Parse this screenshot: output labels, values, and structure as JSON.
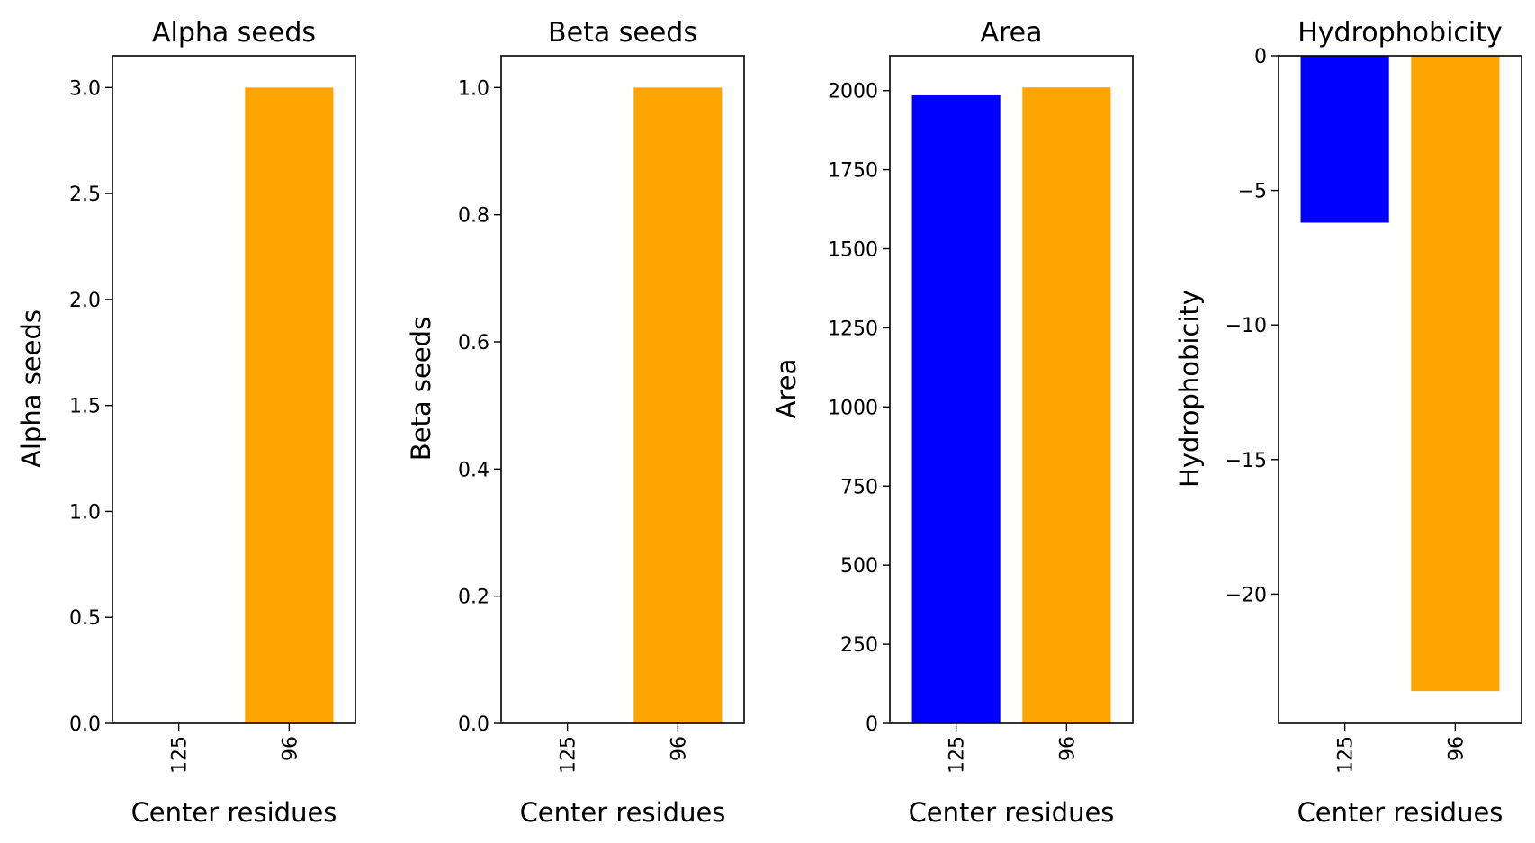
{
  "chart_data": [
    {
      "type": "bar",
      "title": "Alpha seeds",
      "xlabel": "Center residues",
      "ylabel": "Alpha seeds",
      "categories": [
        "125",
        "96"
      ],
      "values": [
        0,
        3.0
      ],
      "colors": [
        "#0000ff",
        "#ffa500"
      ],
      "ylim": [
        0,
        3.15
      ],
      "yticks": [
        0.0,
        0.5,
        1.0,
        1.5,
        2.0,
        2.5,
        3.0
      ],
      "ytick_labels": [
        "0.0",
        "0.5",
        "1.0",
        "1.5",
        "2.0",
        "2.5",
        "3.0"
      ],
      "grid": false
    },
    {
      "type": "bar",
      "title": "Beta seeds",
      "xlabel": "Center residues",
      "ylabel": "Beta seeds",
      "categories": [
        "125",
        "96"
      ],
      "values": [
        0,
        1.0
      ],
      "colors": [
        "#0000ff",
        "#ffa500"
      ],
      "ylim": [
        0,
        1.05
      ],
      "yticks": [
        0.0,
        0.2,
        0.4,
        0.6,
        0.8,
        1.0
      ],
      "ytick_labels": [
        "0.0",
        "0.2",
        "0.4",
        "0.6",
        "0.8",
        "1.0"
      ],
      "grid": false
    },
    {
      "type": "bar",
      "title": "Area",
      "xlabel": "Center residues",
      "ylabel": "Area",
      "categories": [
        "125",
        "96"
      ],
      "values": [
        1985,
        2010
      ],
      "colors": [
        "#0000ff",
        "#ffa500"
      ],
      "ylim": [
        0,
        2110
      ],
      "yticks": [
        0,
        250,
        500,
        750,
        1000,
        1250,
        1500,
        1750,
        2000
      ],
      "ytick_labels": [
        "0",
        "250",
        "500",
        "750",
        "1000",
        "1250",
        "1500",
        "1750",
        "2000"
      ],
      "grid": false
    },
    {
      "type": "bar",
      "title": "Hydrophobicity",
      "xlabel": "Center residues",
      "ylabel": "Hydrophobicity",
      "categories": [
        "125",
        "96"
      ],
      "values": [
        -6.2,
        -23.6
      ],
      "colors": [
        "#0000ff",
        "#ffa500"
      ],
      "ylim": [
        -24.8,
        0
      ],
      "yticks": [
        0,
        -5,
        -10,
        -15,
        -20
      ],
      "ytick_labels": [
        "0",
        "−5",
        "−10",
        "−15",
        "−20"
      ],
      "grid": false
    }
  ]
}
